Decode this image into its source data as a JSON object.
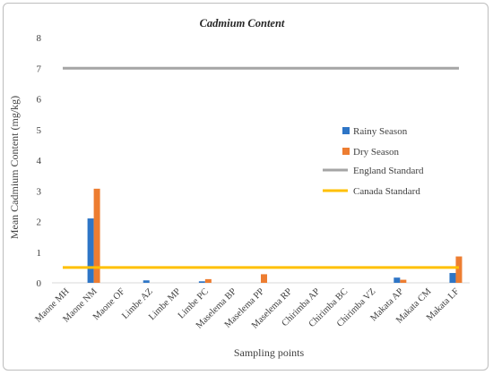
{
  "chart_data": {
    "type": "bar",
    "title": "Cadmium Content",
    "xlabel": "Sampling points",
    "ylabel": "Mean Cadmium Content (mg/kg)",
    "ylim": [
      0,
      8
    ],
    "yticks": [
      "0",
      "1",
      "2",
      "3",
      "4",
      "5",
      "6",
      "7",
      "8"
    ],
    "grid": false,
    "legend_position": "right",
    "categories": [
      "Maone MH",
      "Maone NM",
      "Maone OF",
      "Limbe AZ",
      "Limbe MP",
      "Limbe PC",
      "Maselema BP",
      "Maselema PP",
      "Maselema RP",
      "Chirimba AP",
      "Chirimba BC",
      "Chirimba VZ",
      "Makata AP",
      "Makata CM",
      "Makata LF"
    ],
    "series": [
      {
        "name": "Rainy Season",
        "color": "#2e75c6",
        "values": [
          0,
          2.1,
          0,
          0.08,
          0,
          0.05,
          0,
          0,
          0,
          0,
          0,
          0,
          0.17,
          0,
          0.32
        ]
      },
      {
        "name": "Dry Season",
        "color": "#ed7d31",
        "values": [
          0,
          3.07,
          0,
          0,
          0,
          0.12,
          0,
          0.28,
          0,
          0,
          0,
          0,
          0.1,
          0,
          0.86
        ]
      }
    ],
    "reference_lines": [
      {
        "name": "England Standard",
        "color": "#a5a5a5",
        "value": 7
      },
      {
        "name": "Canada Standard",
        "color": "#ffc000",
        "value": 0.5
      }
    ]
  }
}
